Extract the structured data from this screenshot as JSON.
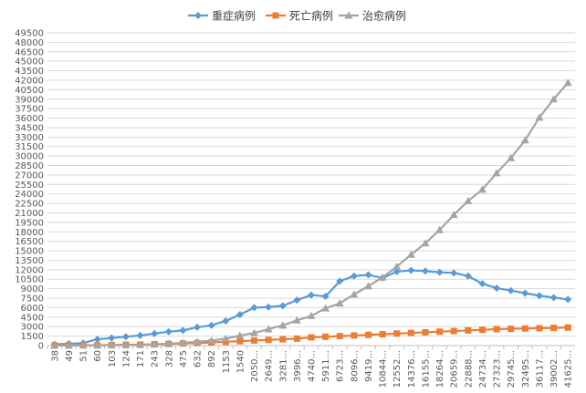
{
  "chart_data": {
    "type": "line",
    "title": "",
    "xlabel": "",
    "ylabel": "",
    "ylim": [
      0,
      49500
    ],
    "ytick_step": 1500,
    "grid": "horizontal",
    "legend_position": "top-center",
    "categories": [
      "38",
      "49",
      "51",
      "60",
      "103",
      "124",
      "171",
      "243",
      "328",
      "475",
      "632",
      "892",
      "1153",
      "1540",
      "2050...",
      "2649...",
      "3281...",
      "3996...",
      "4740...",
      "5911...",
      "6723...",
      "8096...",
      "9419...",
      "10844...",
      "12552...",
      "14376...",
      "16155...",
      "18264...",
      "20659...",
      "22888...",
      "24734...",
      "27323...",
      "29745...",
      "32495...",
      "36117...",
      "39002...",
      "41625..."
    ],
    "series": [
      {
        "name": "重症病例",
        "color": "#5b9bd5",
        "marker": "diamond",
        "values": [
          200,
          300,
          400,
          1000,
          1200,
          1400,
          1600,
          1900,
          2200,
          2400,
          2900,
          3200,
          3900,
          4900,
          6000,
          6100,
          6300,
          7200,
          8000,
          7800,
          10200,
          11000,
          11200,
          10700,
          11700,
          11900,
          11800,
          11600,
          11500,
          11000,
          9800,
          9100,
          8700,
          8300,
          7900,
          7600,
          7300
        ]
      },
      {
        "name": "死亡病例",
        "color": "#ed7d31",
        "marker": "square",
        "values": [
          20,
          30,
          40,
          50,
          100,
          130,
          160,
          200,
          260,
          330,
          400,
          500,
          600,
          700,
          800,
          900,
          1000,
          1100,
          1300,
          1400,
          1500,
          1600,
          1700,
          1800,
          1900,
          2000,
          2100,
          2200,
          2300,
          2400,
          2500,
          2600,
          2650,
          2700,
          2750,
          2800,
          2850
        ]
      },
      {
        "name": "治愈病例",
        "color": "#a5a5a5",
        "marker": "triangle",
        "values": [
          10,
          20,
          30,
          40,
          60,
          80,
          100,
          200,
          300,
          450,
          600,
          800,
          1100,
          1600,
          2000,
          2600,
          3200,
          4000,
          4700,
          5900,
          6700,
          8100,
          9400,
          10800,
          12500,
          14400,
          16200,
          18300,
          20700,
          22900,
          24700,
          27300,
          29700,
          32500,
          36100,
          39000,
          41600
        ]
      }
    ]
  }
}
